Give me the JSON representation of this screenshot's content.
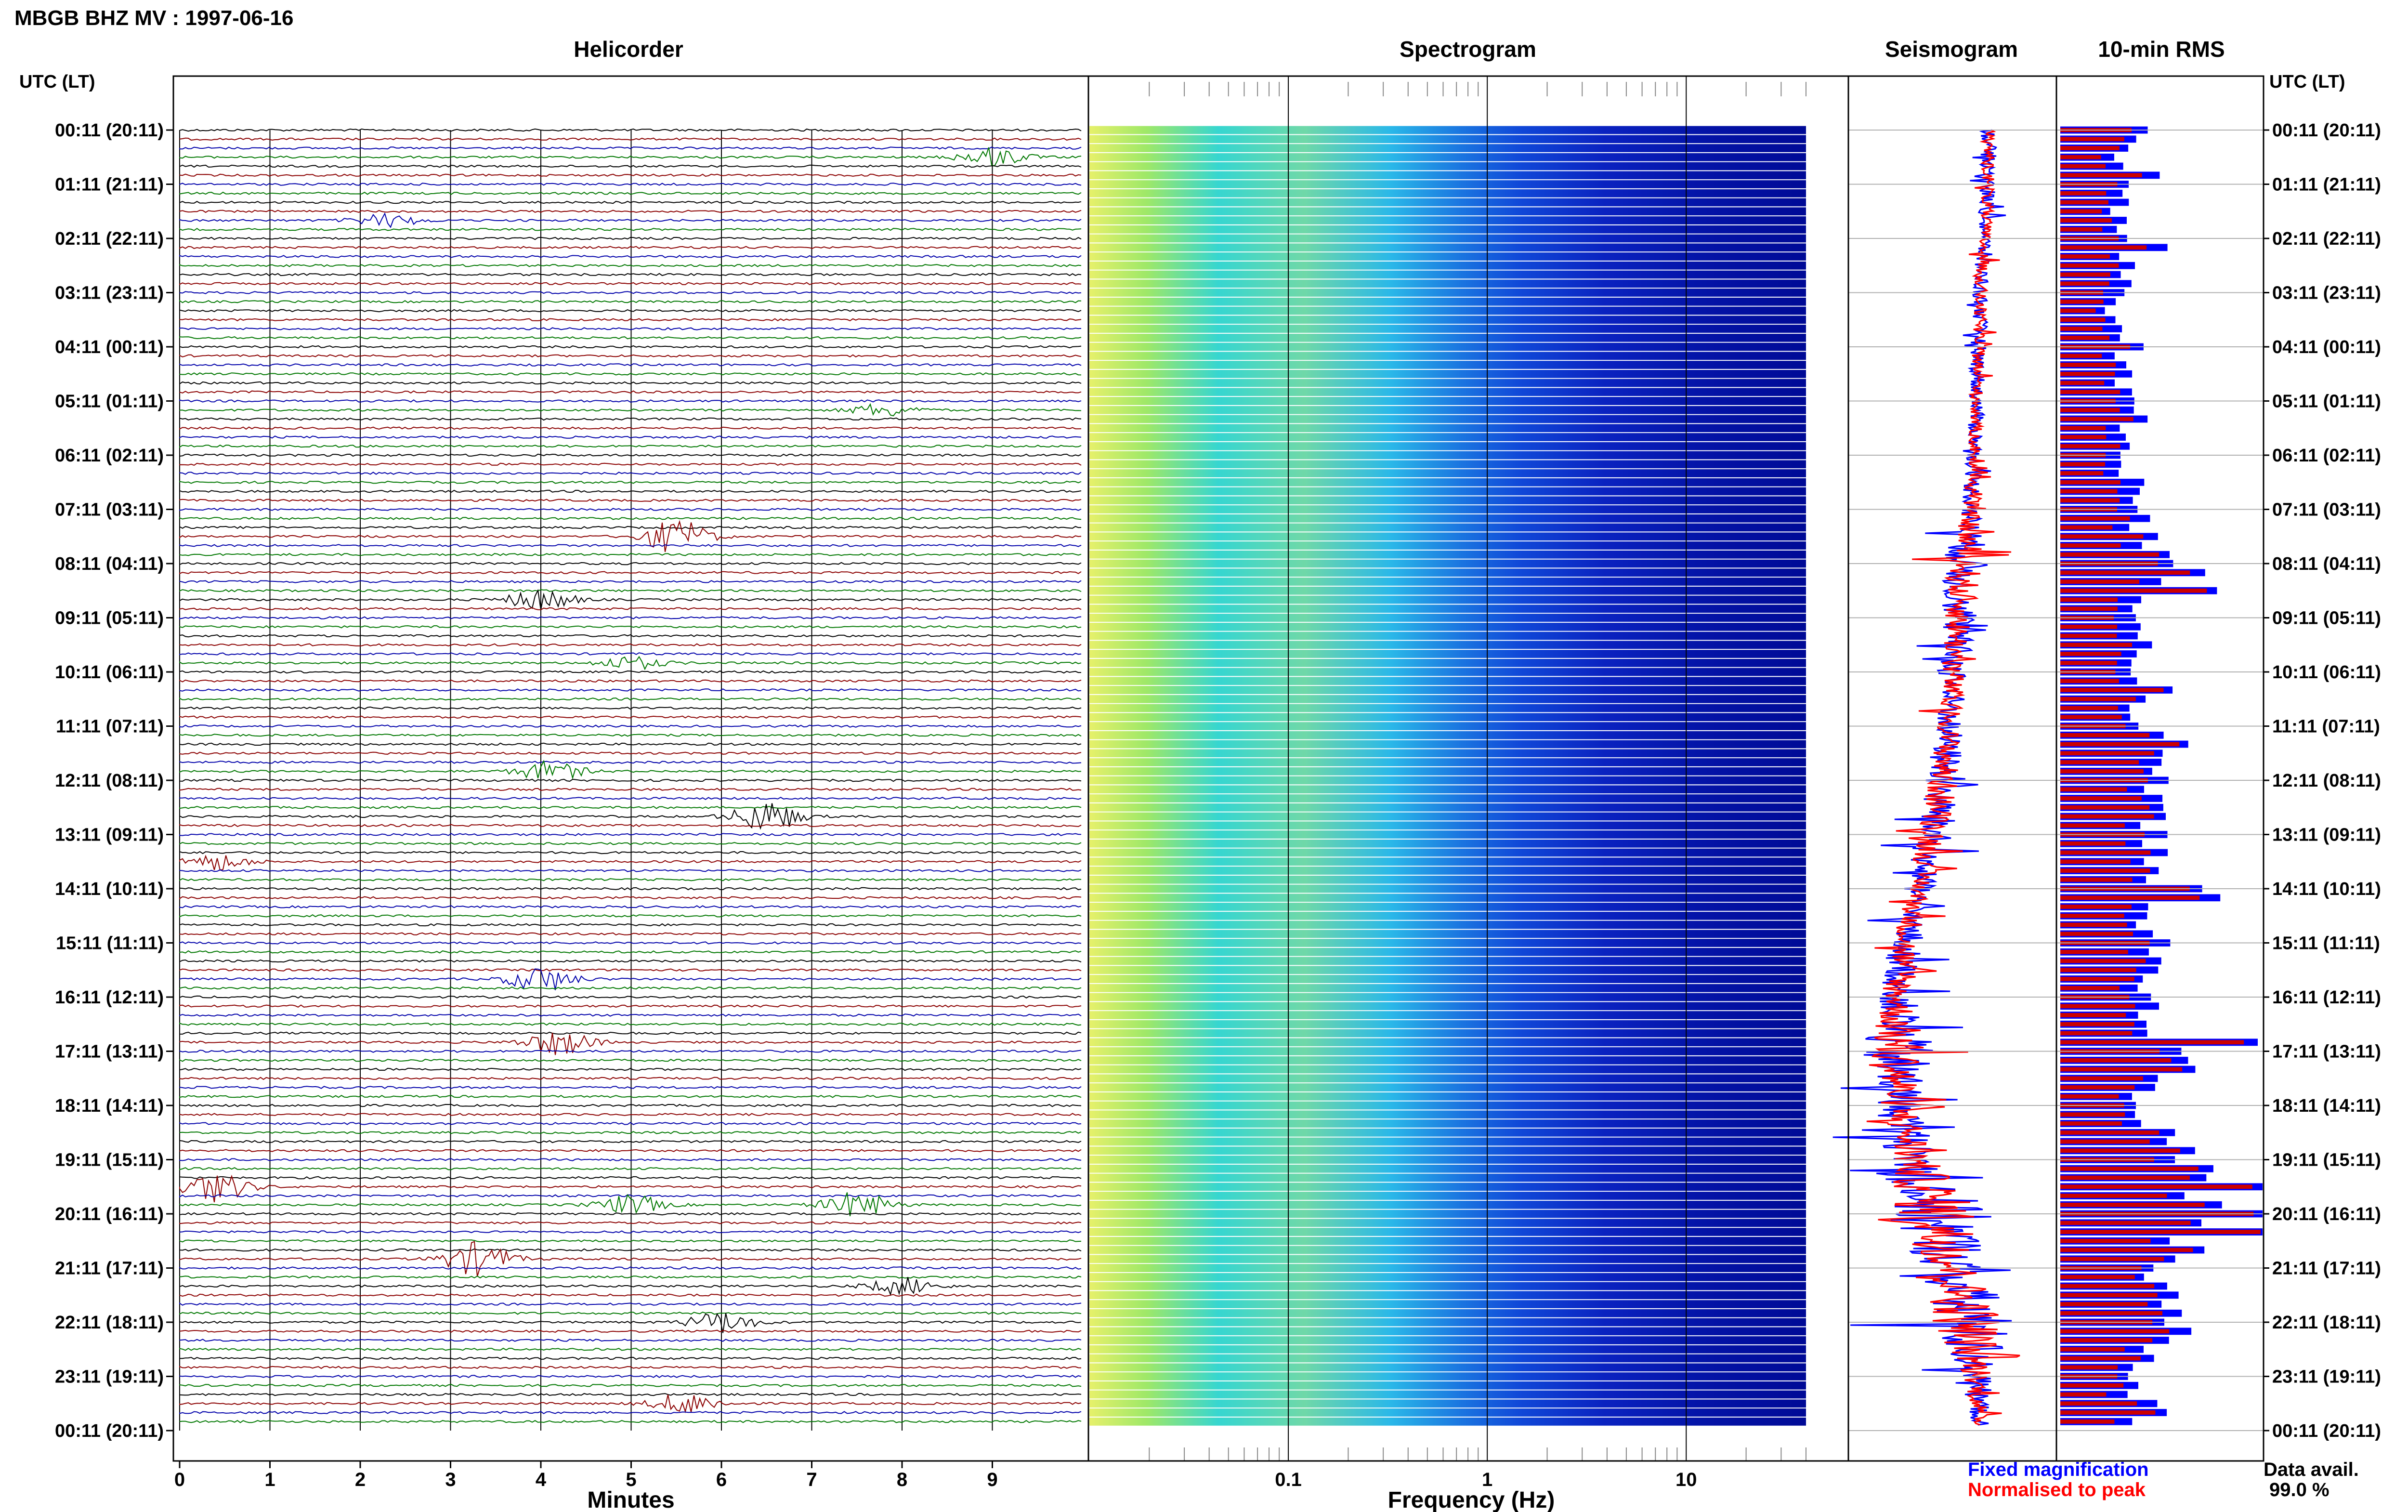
{
  "title": "MBGB BHZ MV : 1997-06-16",
  "panels": {
    "helicorder": {
      "title": "Helicorder",
      "xlabel": "Minutes"
    },
    "spectrogram": {
      "title": "Spectrogram",
      "xlabel": "Frequency (Hz)"
    },
    "seismogram": {
      "title": "Seismogram"
    },
    "rms": {
      "title": "10-min RMS"
    }
  },
  "axis_left_label": "UTC (LT)",
  "axis_right_label": "UTC (LT)",
  "legend": {
    "fixed_label": "Fixed magnification",
    "fixed_color": "#0000ff",
    "norm_label": "Normalised to peak",
    "norm_color": "#ff0000"
  },
  "data_avail": {
    "label": "Data avail.",
    "value": "99.0 %"
  },
  "colors": {
    "trace_cycle": [
      "#000000",
      "#8b0000",
      "#0000aa",
      "#007700"
    ],
    "spectrogram_low": "#00008b",
    "spectrogram_high": "#ffff66"
  },
  "chart_data": [
    {
      "type": "line",
      "name": "helicorder",
      "title": "Helicorder",
      "xlabel": "Minutes",
      "x_ticks": [
        "0",
        "1",
        "2",
        "3",
        "4",
        "5",
        "6",
        "7",
        "8",
        "9"
      ],
      "xlim": [
        0,
        10
      ],
      "y_ticks": [
        "00:11 (20:11)",
        "01:11 (21:11)",
        "02:11 (22:11)",
        "03:11 (23:11)",
        "04:11 (00:11)",
        "05:11 (01:11)",
        "06:11 (02:11)",
        "07:11 (03:11)",
        "08:11 (04:11)",
        "09:11 (05:11)",
        "10:11 (06:11)",
        "11:11 (07:11)",
        "12:11 (08:11)",
        "13:11 (09:11)",
        "14:11 (10:11)",
        "15:11 (11:11)",
        "16:11 (12:11)",
        "17:11 (13:11)",
        "18:11 (14:11)",
        "19:11 (15:11)",
        "20:11 (16:11)",
        "21:11 (17:11)",
        "22:11 (18:11)",
        "23:11 (19:11)",
        "00:11 (20:11)"
      ],
      "traces_per_hour": 6,
      "events": [
        {
          "hour": 0,
          "minute": 9.0,
          "amp": 0.9
        },
        {
          "hour": 1,
          "minute": 2.3,
          "amp": 0.6
        },
        {
          "hour": 5,
          "minute": 7.8,
          "amp": 0.6
        },
        {
          "hour": 7,
          "minute": 5.5,
          "amp": 1.6
        },
        {
          "hour": 8,
          "minute": 4.0,
          "amp": 1.0
        },
        {
          "hour": 9,
          "minute": 5.0,
          "amp": 0.6
        },
        {
          "hour": 11,
          "minute": 4.1,
          "amp": 0.9
        },
        {
          "hour": 12,
          "minute": 6.5,
          "amp": 1.5
        },
        {
          "hour": 13,
          "minute": 0.4,
          "amp": 0.8
        },
        {
          "hour": 15,
          "minute": 4.0,
          "amp": 1.2
        },
        {
          "hour": 16,
          "minute": 4.2,
          "amp": 1.2
        },
        {
          "hour": 19,
          "minute": 0.4,
          "amp": 1.4
        },
        {
          "hour": 19,
          "minute": 5.0,
          "amp": 0.9
        },
        {
          "hour": 19,
          "minute": 7.5,
          "amp": 1.2
        },
        {
          "hour": 20,
          "minute": 3.3,
          "amp": 1.6
        },
        {
          "hour": 21,
          "minute": 8.0,
          "amp": 0.8
        },
        {
          "hour": 22,
          "minute": 6.0,
          "amp": 1.0
        },
        {
          "hour": 23,
          "minute": 5.6,
          "amp": 1.0
        }
      ]
    },
    {
      "type": "heatmap",
      "name": "spectrogram",
      "title": "Spectrogram",
      "xlabel": "Frequency (Hz)",
      "x_scale": "log",
      "x_ticks": [
        "0.1",
        "1",
        "10"
      ],
      "x_tick_values": [
        0.1,
        1,
        10
      ],
      "xlim": [
        0.01,
        50
      ]
    },
    {
      "type": "line",
      "name": "seismogram",
      "title": "Seismogram",
      "series": [
        {
          "name": "Fixed magnification",
          "color": "#0000ff"
        },
        {
          "name": "Normalised to peak",
          "color": "#ff0000"
        }
      ],
      "hourly_offset": [
        0.68,
        0.68,
        0.66,
        0.64,
        0.63,
        0.62,
        0.61,
        0.59,
        0.56,
        0.53,
        0.5,
        0.48,
        0.45,
        0.4,
        0.33,
        0.26,
        0.22,
        0.21,
        0.23,
        0.3,
        0.42,
        0.5,
        0.58,
        0.62,
        0.64
      ],
      "hourly_noise": [
        0.04,
        0.04,
        0.04,
        0.04,
        0.04,
        0.04,
        0.04,
        0.05,
        0.12,
        0.09,
        0.08,
        0.07,
        0.1,
        0.1,
        0.07,
        0.09,
        0.09,
        0.2,
        0.12,
        0.14,
        0.28,
        0.16,
        0.24,
        0.08,
        0.04
      ]
    },
    {
      "type": "bar",
      "name": "10-min RMS",
      "title": "10-min RMS",
      "orientation": "horizontal",
      "series": [
        {
          "name": "Fixed magnification",
          "color": "#0000ff"
        },
        {
          "name": "Normalised to peak",
          "color": "#cc0000"
        }
      ],
      "hourly_level": [
        0.3,
        0.33,
        0.32,
        0.29,
        0.29,
        0.34,
        0.32,
        0.35,
        0.55,
        0.42,
        0.4,
        0.45,
        0.55,
        0.5,
        0.46,
        0.48,
        0.45,
        0.63,
        0.4,
        0.7,
        0.85,
        0.5,
        0.55,
        0.4,
        0.3
      ],
      "xlim": [
        0,
        1
      ]
    }
  ]
}
